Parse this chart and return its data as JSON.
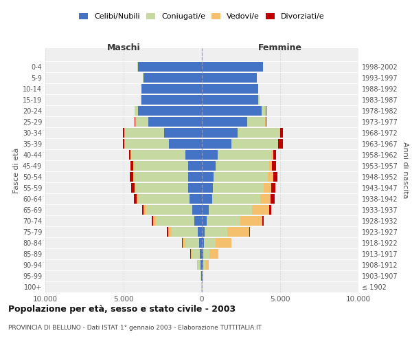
{
  "age_groups": [
    "100+",
    "95-99",
    "90-94",
    "85-89",
    "80-84",
    "75-79",
    "70-74",
    "65-69",
    "60-64",
    "55-59",
    "50-54",
    "45-49",
    "40-44",
    "35-39",
    "30-34",
    "25-29",
    "20-24",
    "15-19",
    "10-14",
    "5-9",
    "0-4"
  ],
  "birth_years": [
    "≤ 1902",
    "1903-1907",
    "1908-1912",
    "1913-1917",
    "1918-1922",
    "1923-1927",
    "1928-1932",
    "1933-1937",
    "1938-1942",
    "1943-1947",
    "1948-1952",
    "1953-1957",
    "1958-1962",
    "1963-1967",
    "1968-1972",
    "1973-1977",
    "1978-1982",
    "1983-1987",
    "1988-1992",
    "1993-1997",
    "1998-2002"
  ],
  "males": {
    "celibi": [
      20,
      30,
      80,
      130,
      180,
      280,
      480,
      620,
      780,
      870,
      870,
      870,
      1050,
      2100,
      2400,
      3400,
      4100,
      3850,
      3850,
      3750,
      4100
    ],
    "coniugati": [
      15,
      45,
      180,
      480,
      880,
      1650,
      2450,
      2950,
      3250,
      3350,
      3450,
      3450,
      3450,
      2850,
      2550,
      850,
      180,
      40,
      10,
      5,
      5
    ],
    "vedovi": [
      4,
      8,
      45,
      110,
      190,
      240,
      190,
      140,
      140,
      90,
      75,
      65,
      45,
      25,
      25,
      25,
      15,
      8,
      5,
      3,
      2
    ],
    "divorziati": [
      2,
      4,
      8,
      18,
      28,
      45,
      75,
      110,
      190,
      190,
      190,
      170,
      110,
      75,
      75,
      45,
      25,
      8,
      3,
      2,
      1
    ]
  },
  "females": {
    "nubili": [
      18,
      28,
      70,
      90,
      120,
      180,
      320,
      460,
      660,
      710,
      760,
      860,
      1000,
      1900,
      2300,
      2900,
      3800,
      3600,
      3600,
      3500,
      3900
    ],
    "coniugate": [
      12,
      35,
      140,
      380,
      770,
      1450,
      2150,
      2750,
      3050,
      3250,
      3450,
      3450,
      3450,
      2950,
      2650,
      1150,
      280,
      70,
      10,
      5,
      5
    ],
    "vedove": [
      8,
      28,
      240,
      580,
      980,
      1380,
      1380,
      1080,
      680,
      480,
      330,
      180,
      90,
      40,
      40,
      25,
      15,
      8,
      3,
      2,
      2
    ],
    "divorziate": [
      2,
      4,
      8,
      18,
      28,
      45,
      95,
      140,
      240,
      240,
      290,
      240,
      190,
      290,
      190,
      45,
      25,
      8,
      3,
      2,
      1
    ]
  },
  "colors": {
    "celibi": "#4472C4",
    "coniugati": "#C5D9A0",
    "vedovi": "#F5C06E",
    "divorziati": "#C00000"
  },
  "legend_labels": [
    "Celibi/Nubili",
    "Coniugati/e",
    "Vedovi/e",
    "Divorziati/e"
  ],
  "title": "Popolazione per età, sesso e stato civile - 2003",
  "subtitle": "PROVINCIA DI BELLUNO - Dati ISTAT 1° gennaio 2003 - Elaborazione TUTTITALIA.IT",
  "xlabel_left": "Maschi",
  "xlabel_right": "Femmine",
  "ylabel_left": "Fasce di età",
  "ylabel_right": "Anni di nascita",
  "xlim": 10000,
  "xticks": [
    -10000,
    -5000,
    0,
    5000,
    10000
  ],
  "xticklabels": [
    "10.000",
    "5.000",
    "0",
    "5.000",
    "10.000"
  ],
  "bg_color": "#FFFFFF",
  "plot_bg_color": "#EFEFEF"
}
